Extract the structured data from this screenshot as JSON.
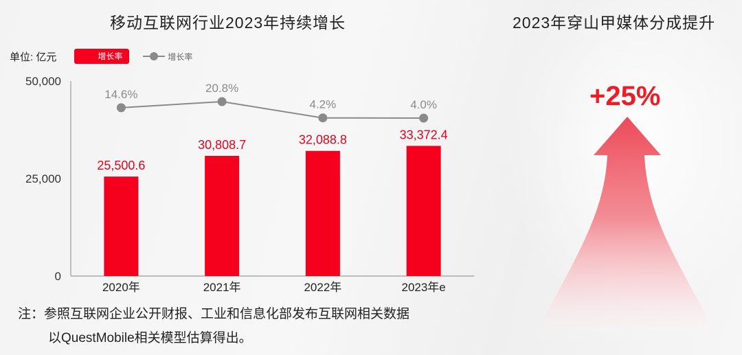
{
  "left_title": "移动互联网行业2023年持续增长",
  "right_title": "2023年穿山甲媒体分成提升",
  "legend": {
    "unit": "单位: 亿元",
    "bar_label": "增长率",
    "line_label": "增长率"
  },
  "note": {
    "line1": "注：参照互联网企业公开财报、工业和信息化部发布互联网相关数据",
    "line2": "以QuestMobile相关模型估算得出。"
  },
  "highlight": {
    "value": "+25%",
    "color": "#ee1c25",
    "icon": "up-arrow-icon"
  },
  "chart_data": {
    "type": "bar",
    "categories": [
      "2020年",
      "2021年",
      "2022年",
      "2023年e"
    ],
    "ylim": [
      0,
      50000
    ],
    "yticks": [
      "0",
      "25,000",
      "50,000"
    ],
    "series": [
      {
        "name": "增长率",
        "type": "bar",
        "color": "#f5001d",
        "values": [
          25500.6,
          30808.7,
          32088.8,
          33372.4
        ],
        "labels": [
          "25,500.6",
          "30,808.7",
          "32,088.8",
          "33,372.4"
        ]
      },
      {
        "name": "增长率",
        "type": "line",
        "color": "#8a8a8a",
        "values": [
          14.6,
          20.8,
          4.2,
          4.0
        ],
        "labels": [
          "14.6%",
          "20.8%",
          "4.2%",
          "4.0%"
        ]
      }
    ],
    "grid": false
  }
}
